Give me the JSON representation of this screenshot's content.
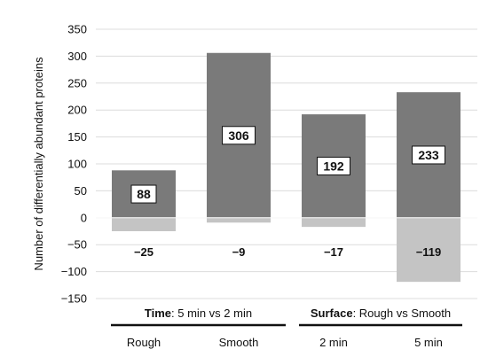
{
  "chart_data": {
    "type": "bar",
    "ylabel": "Number of differentially abundant proteins",
    "ylim": [
      -150,
      350
    ],
    "yticks": [
      350,
      300,
      250,
      200,
      150,
      100,
      50,
      0,
      -50,
      -100,
      -150
    ],
    "ytick_labels": [
      "350",
      "300",
      "250",
      "200",
      "150",
      "100",
      "50",
      "0",
      "−50",
      "−100",
      "−150"
    ],
    "grid": true,
    "categories": [
      "Rough",
      "Smooth",
      "2 min",
      "5 min"
    ],
    "series": [
      {
        "values": [
          88,
          306,
          192,
          233
        ],
        "color": "#7a7a7a",
        "labels": [
          "88",
          "306",
          "192",
          "233"
        ]
      },
      {
        "values": [
          -25,
          -9,
          -17,
          -119
        ],
        "color": "#c4c4c4",
        "labels": [
          "−25",
          "−9",
          "−17",
          "−119"
        ]
      }
    ],
    "groups": [
      {
        "bold": "Time",
        "rest": ": 5 min vs 2 min",
        "categories": [
          "Rough",
          "Smooth"
        ]
      },
      {
        "bold": "Surface",
        "rest": ": Rough vs Smooth",
        "categories": [
          "2 min",
          "5 min"
        ]
      }
    ]
  }
}
